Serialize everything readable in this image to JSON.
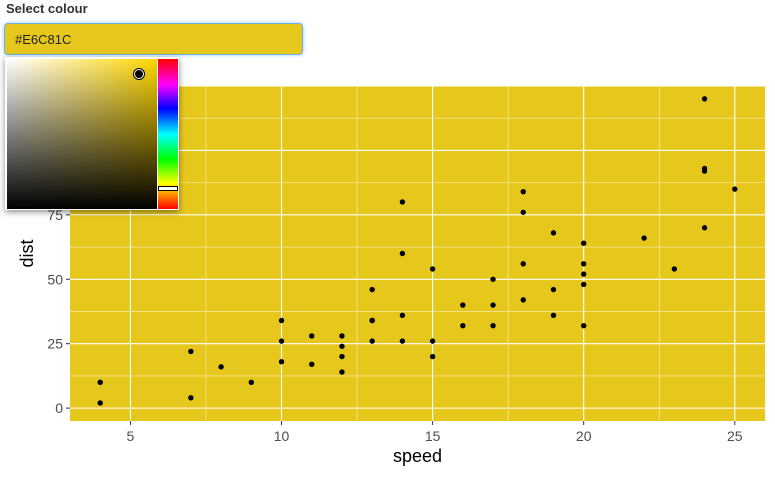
{
  "label": "Select colour",
  "input_value": "#E6C81C",
  "picker": {
    "selected": "#E6C81C",
    "hue": "#ffd700",
    "saturation": 0.88,
    "value": 0.9,
    "hue_fraction": 0.86
  },
  "colors": {
    "panel_background": "#E6C81C",
    "grid": "#ffffff",
    "points": "#000000"
  },
  "chart_data": {
    "type": "scatter",
    "xlabel": "speed",
    "ylabel": "dist",
    "xlim": [
      3,
      26
    ],
    "ylim": [
      -5,
      125
    ],
    "xticks": [
      5,
      10,
      15,
      20,
      25
    ],
    "yticks": [
      0,
      25,
      50,
      75
    ],
    "grid": true,
    "points": [
      [
        4,
        2
      ],
      [
        4,
        10
      ],
      [
        7,
        4
      ],
      [
        7,
        22
      ],
      [
        8,
        16
      ],
      [
        9,
        10
      ],
      [
        10,
        18
      ],
      [
        10,
        26
      ],
      [
        10,
        34
      ],
      [
        11,
        17
      ],
      [
        11,
        28
      ],
      [
        12,
        14
      ],
      [
        12,
        20
      ],
      [
        12,
        24
      ],
      [
        12,
        28
      ],
      [
        13,
        26
      ],
      [
        13,
        34
      ],
      [
        13,
        34
      ],
      [
        13,
        46
      ],
      [
        14,
        26
      ],
      [
        14,
        36
      ],
      [
        14,
        60
      ],
      [
        14,
        80
      ],
      [
        15,
        20
      ],
      [
        15,
        26
      ],
      [
        15,
        54
      ],
      [
        16,
        32
      ],
      [
        16,
        40
      ],
      [
        17,
        32
      ],
      [
        17,
        40
      ],
      [
        17,
        50
      ],
      [
        18,
        42
      ],
      [
        18,
        56
      ],
      [
        18,
        76
      ],
      [
        18,
        84
      ],
      [
        19,
        36
      ],
      [
        19,
        46
      ],
      [
        19,
        68
      ],
      [
        20,
        32
      ],
      [
        20,
        48
      ],
      [
        20,
        52
      ],
      [
        20,
        56
      ],
      [
        20,
        64
      ],
      [
        22,
        66
      ],
      [
        23,
        54
      ],
      [
        24,
        70
      ],
      [
        24,
        92
      ],
      [
        24,
        93
      ],
      [
        24,
        120
      ],
      [
        25,
        85
      ]
    ]
  }
}
